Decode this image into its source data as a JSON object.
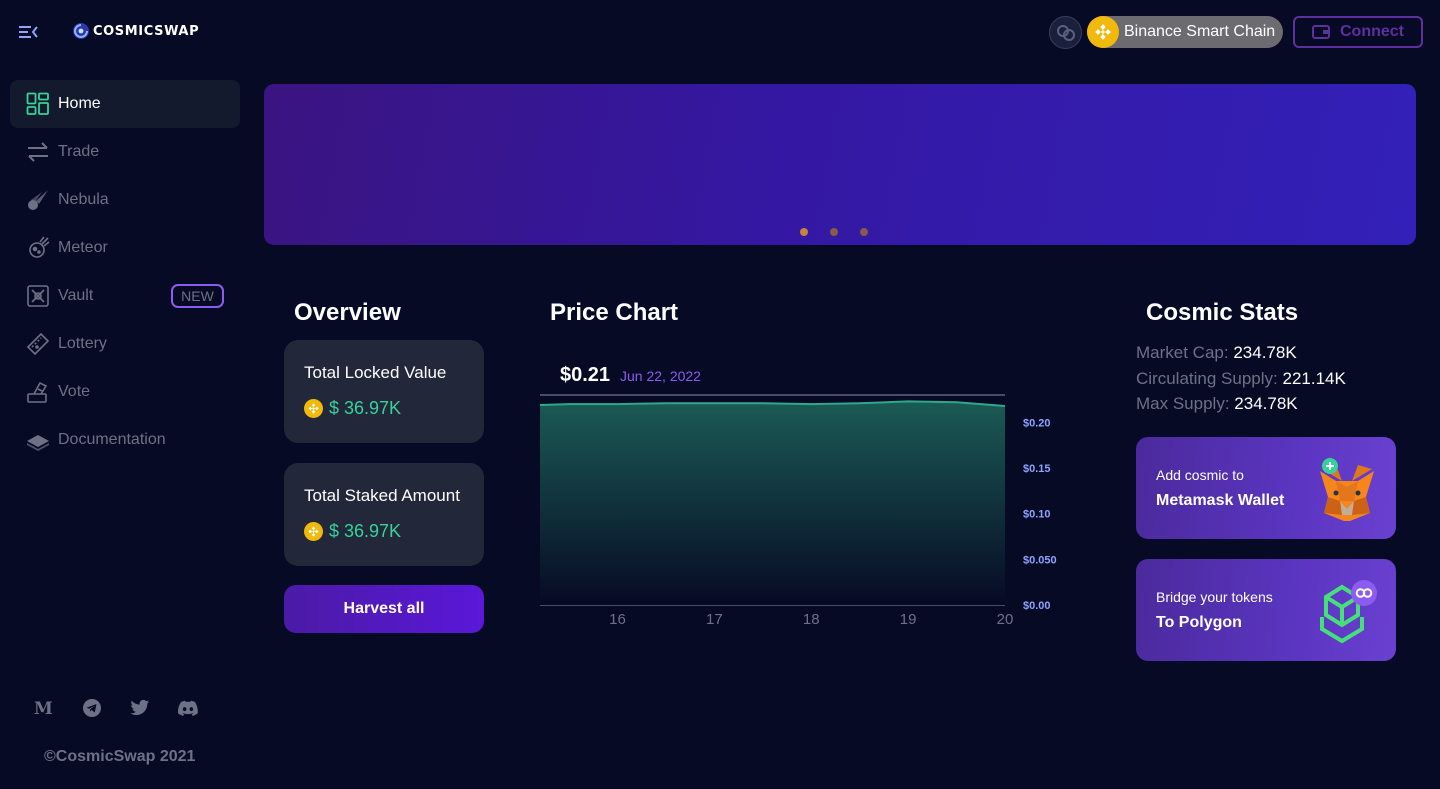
{
  "header": {
    "logo_text": "COSMICSWAP",
    "network_label": "Binance Smart Chain",
    "connect_label": "Connect"
  },
  "sidebar": {
    "items": [
      {
        "label": "Home",
        "icon": "home-grid-icon",
        "active": true
      },
      {
        "label": "Trade",
        "icon": "swap-arrows-icon"
      },
      {
        "label": "Nebula",
        "icon": "comet-icon"
      },
      {
        "label": "Meteor",
        "icon": "meteor-icon"
      },
      {
        "label": "Vault",
        "icon": "vault-icon",
        "badge": "NEW"
      },
      {
        "label": "Lottery",
        "icon": "ticket-icon"
      },
      {
        "label": "Vote",
        "icon": "vote-icon"
      },
      {
        "label": "Documentation",
        "icon": "book-icon"
      }
    ],
    "socials": [
      "medium-icon",
      "telegram-icon",
      "twitter-icon",
      "discord-icon"
    ],
    "copyright": "©CosmicSwap 2021"
  },
  "banner": {
    "slide_count": 3,
    "active_slide": 0
  },
  "overview": {
    "title": "Overview",
    "cards": [
      {
        "label": "Total Locked Value",
        "value": "$ 36.97K"
      },
      {
        "label": "Total Staked Amount",
        "value": "$ 36.97K"
      }
    ],
    "harvest_label": "Harvest all"
  },
  "price_chart": {
    "title": "Price Chart",
    "current_price": "$0.21",
    "date": "Jun 22, 2022"
  },
  "chart_data": {
    "type": "area",
    "title": "",
    "x": [
      15.2,
      15.5,
      16,
      16.5,
      17,
      17.5,
      18,
      18.5,
      19,
      19.5,
      20
    ],
    "values": [
      0.219,
      0.22,
      0.22,
      0.221,
      0.221,
      0.221,
      0.22,
      0.221,
      0.223,
      0.222,
      0.218
    ],
    "x_ticks": [
      "16",
      "17",
      "18",
      "19",
      "20"
    ],
    "y_ticks": [
      "$0.00",
      "$0.050",
      "$0.10",
      "$0.15",
      "$0.20"
    ],
    "ylim": [
      0,
      0.23
    ],
    "xlim": [
      15.2,
      20
    ],
    "grid": true,
    "color": "#2fa88a"
  },
  "cosmic_stats": {
    "title": "Cosmic Stats",
    "market_cap_label": "Market Cap:",
    "market_cap": "234.78K",
    "circulating_label": "Circulating Supply:",
    "circulating": "221.14K",
    "max_label": "Max Supply:",
    "max": "234.78K",
    "promo_metamask": {
      "small": "Add cosmic to",
      "big": "Metamask Wallet"
    },
    "promo_polygon": {
      "small": "Bridge your tokens",
      "big": "To Polygon"
    }
  },
  "colors": {
    "background": "#060a24",
    "accent_purple": "#8c5cf0",
    "accent_green": "#35d29a",
    "bnb_yellow": "#f0b90b"
  }
}
